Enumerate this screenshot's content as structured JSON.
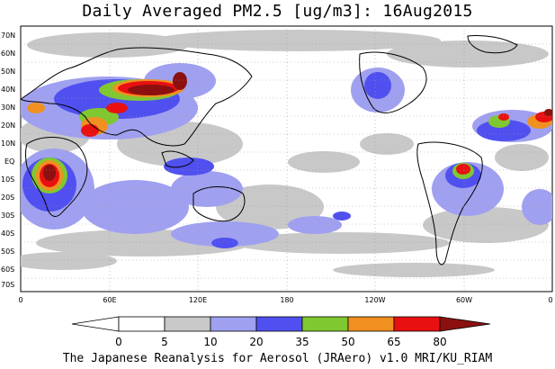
{
  "title": "Daily Averaged PM2.5 [ug/m3]: 16Aug2015",
  "footer": "The Japanese Reanalysis for Aerosol (JRAero) v1.0 MRI/KU_RIAM",
  "lat_labels": [
    "70N",
    "60N",
    "50N",
    "40N",
    "30N",
    "20N",
    "10N",
    "EQ",
    "10S",
    "20S",
    "30S",
    "40S",
    "50S",
    "60S",
    "70S"
  ],
  "lon_labels": [
    "0",
    "60E",
    "120E",
    "180",
    "120W",
    "60W",
    "0"
  ],
  "colorbar": {
    "ticks": [
      "0",
      "5",
      "10",
      "20",
      "35",
      "50",
      "65",
      "80"
    ],
    "colors": [
      "#ffffff",
      "#c8c8c8",
      "#a0a0f0",
      "#5050f0",
      "#80c830",
      "#f09020",
      "#e81010",
      "#8c1010"
    ]
  },
  "map_colors": {
    "gray": "#c8c8c8",
    "light_blue": "#a0a0f0",
    "blue": "#5050f0",
    "green": "#80c830",
    "orange": "#f09020",
    "red": "#e81010",
    "dark_red": "#8c1010"
  }
}
